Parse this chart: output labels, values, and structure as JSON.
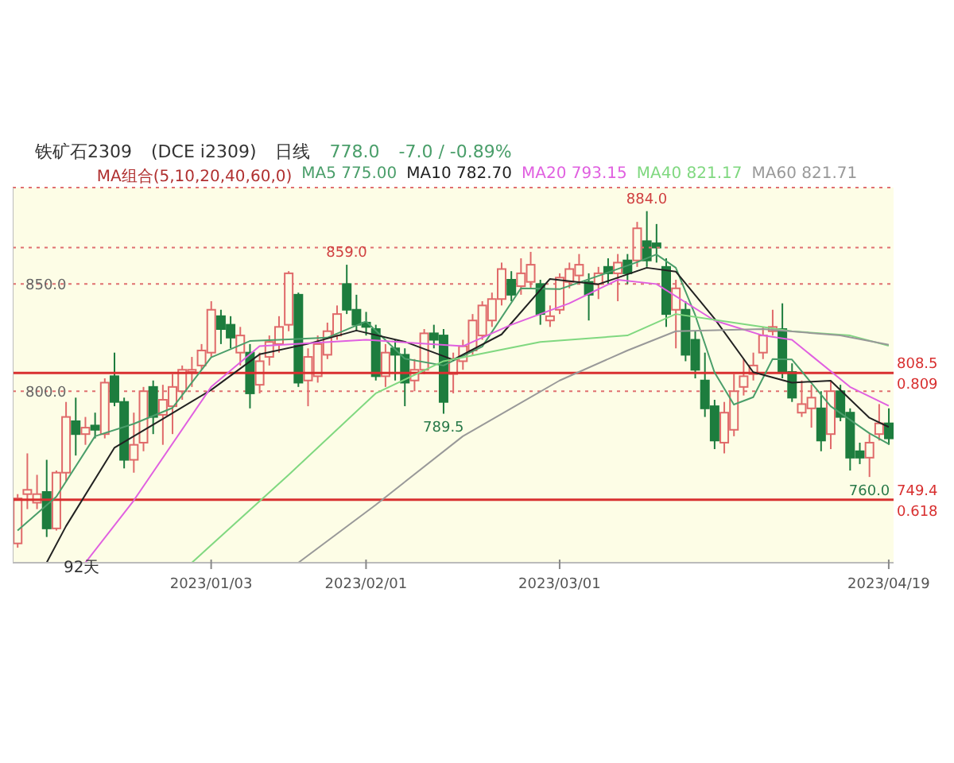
{
  "chart_data": {
    "type": "candlestick",
    "title": "铁矿石2309",
    "annotations": [
      "(DCE i2309)",
      "日线",
      "778.0",
      "-7.0 / -0.89%",
      "MA组合(5,10,20,40,60,0)",
      "92天",
      "0.809",
      "0.618",
      {
        "text": "884.0",
        "y": 884
      },
      {
        "text": "859.0",
        "y": 859
      },
      {
        "text": "789.5",
        "y": 789.5
      },
      {
        "text": "760.0",
        "y": 760
      }
    ],
    "categories": [
      null,
      null,
      null,
      null,
      null,
      null,
      null,
      null,
      null,
      null,
      null,
      null,
      null,
      null,
      null,
      null,
      null,
      null,
      null,
      null,
      "2023/01/03",
      null,
      null,
      null,
      null,
      null,
      null,
      null,
      null,
      null,
      null,
      null,
      null,
      null,
      null,
      null,
      "2023/02/01",
      null,
      null,
      null,
      null,
      null,
      null,
      null,
      null,
      null,
      null,
      null,
      null,
      null,
      null,
      null,
      null,
      null,
      null,
      null,
      "2023/03/01",
      null,
      null,
      null,
      null,
      null,
      null,
      null,
      null,
      null,
      null,
      null,
      null,
      null,
      null,
      null,
      null,
      null,
      null,
      null,
      null,
      null,
      null,
      null,
      null,
      null,
      null,
      null,
      null,
      null,
      null,
      null,
      null,
      null,
      "2023/04/19"
    ],
    "ohlc": [
      [
        729,
        752,
        727,
        750
      ],
      [
        752,
        771,
        745,
        754
      ],
      [
        748,
        761,
        745,
        752
      ],
      [
        753,
        768,
        732,
        736
      ],
      [
        736,
        763,
        735,
        762
      ],
      [
        762,
        795,
        758,
        788
      ],
      [
        786,
        797,
        770,
        780
      ],
      [
        780,
        788,
        775,
        783
      ],
      [
        784,
        790,
        778,
        782
      ],
      [
        780,
        806,
        778,
        804
      ],
      [
        807,
        818,
        793,
        795
      ],
      [
        795,
        797,
        764,
        768
      ],
      [
        768,
        790,
        762,
        775
      ],
      [
        776,
        802,
        772,
        800
      ],
      [
        802,
        805,
        780,
        788
      ],
      [
        789,
        803,
        775,
        796
      ],
      [
        793,
        808,
        780,
        802
      ],
      [
        800,
        812,
        796,
        810
      ],
      [
        809,
        816,
        802,
        810
      ],
      [
        812,
        822,
        810,
        819
      ],
      [
        818,
        842,
        816,
        838
      ],
      [
        835,
        838,
        822,
        829
      ],
      [
        831,
        835,
        820,
        825
      ],
      [
        818,
        830,
        812,
        826
      ],
      [
        818,
        822,
        792,
        799
      ],
      [
        803,
        818,
        799,
        814
      ],
      [
        816,
        826,
        812,
        823
      ],
      [
        822,
        835,
        818,
        830
      ],
      [
        831,
        856,
        828,
        855
      ],
      [
        845,
        846,
        802,
        804
      ],
      [
        805,
        820,
        793,
        816
      ],
      [
        807,
        826,
        804,
        822
      ],
      [
        817,
        832,
        815,
        828
      ],
      [
        826,
        840,
        824,
        836
      ],
      [
        850,
        859,
        836,
        838
      ],
      [
        838,
        845,
        828,
        831
      ],
      [
        832,
        837,
        826,
        830
      ],
      [
        829,
        831,
        805,
        807
      ],
      [
        807,
        822,
        802,
        818
      ],
      [
        820,
        824,
        805,
        817
      ],
      [
        817,
        820,
        793,
        804
      ],
      [
        805,
        815,
        800,
        810
      ],
      [
        810,
        829,
        808,
        827
      ],
      [
        827,
        831,
        820,
        824
      ],
      [
        826,
        829,
        789.5,
        795
      ],
      [
        808,
        818,
        799,
        815
      ],
      [
        814,
        824,
        810,
        821
      ],
      [
        819,
        836,
        817,
        833
      ],
      [
        826,
        842,
        824,
        840
      ],
      [
        833,
        846,
        830,
        843
      ],
      [
        843,
        860,
        840,
        857
      ],
      [
        852,
        856,
        842,
        845
      ],
      [
        849,
        862,
        845,
        855
      ],
      [
        851,
        865,
        848,
        859
      ],
      [
        850,
        852,
        831,
        836
      ],
      [
        833,
        840,
        830,
        835
      ],
      [
        838,
        855,
        836,
        853
      ],
      [
        851,
        860,
        848,
        857
      ],
      [
        854,
        864,
        850,
        859
      ],
      [
        851,
        855,
        833,
        845
      ],
      [
        850,
        858,
        843,
        855
      ],
      [
        858,
        862,
        850,
        855
      ],
      [
        855,
        864,
        842,
        860
      ],
      [
        861,
        864,
        850,
        855
      ],
      [
        861,
        879,
        858,
        876
      ],
      [
        870,
        884,
        858,
        861
      ],
      [
        869,
        878,
        860,
        867
      ],
      [
        858,
        862,
        830,
        836
      ],
      [
        838,
        852,
        820,
        848
      ],
      [
        838,
        842,
        814,
        817
      ],
      [
        824,
        828,
        806,
        810
      ],
      [
        805,
        818,
        788,
        792
      ],
      [
        793,
        796,
        773,
        777
      ],
      [
        776,
        795,
        771,
        790
      ],
      [
        782,
        808,
        779,
        800
      ],
      [
        802,
        815,
        798,
        807
      ],
      [
        808,
        818,
        805,
        812
      ],
      [
        818,
        830,
        815,
        826
      ],
      [
        828,
        838,
        826,
        830
      ],
      [
        829,
        841,
        806,
        809
      ],
      [
        809,
        813,
        795,
        797
      ],
      [
        790,
        805,
        788,
        794
      ],
      [
        792,
        803,
        783,
        797
      ],
      [
        792,
        800,
        772,
        777
      ],
      [
        780,
        805,
        773,
        800
      ],
      [
        800,
        803,
        786,
        788
      ],
      [
        790,
        792,
        763,
        769
      ],
      [
        772,
        776,
        766,
        769
      ],
      [
        769,
        780,
        760,
        776
      ],
      [
        780,
        794,
        777,
        785
      ],
      [
        785,
        792,
        775,
        778
      ]
    ],
    "series": [
      {
        "name": "MA5 775.00",
        "type": "line",
        "color": "#4a9e6a",
        "values": [
          735,
          null,
          null,
          null,
          750.8,
          null,
          null,
          null,
          779,
          null,
          null,
          null,
          784.8,
          null,
          null,
          null,
          792.2,
          null,
          null,
          null,
          815.8,
          null,
          null,
          null,
          823.4,
          null,
          null,
          null,
          824.2,
          null,
          null,
          null,
          825,
          null,
          null,
          null,
          832.6,
          null,
          null,
          null,
          815.2,
          null,
          null,
          null,
          812,
          null,
          null,
          null,
          820.8,
          null,
          null,
          null,
          848,
          null,
          null,
          null,
          847.6,
          null,
          null,
          null,
          853.8,
          null,
          null,
          null,
          860.2,
          null,
          863.8,
          null,
          857.6,
          null,
          835.6,
          null,
          808.8,
          null,
          793.8,
          null,
          797.2,
          null,
          815,
          null,
          814.8,
          null,
          null,
          null,
          793,
          null,
          null,
          null,
          780.4,
          null,
          775.4
        ]
      },
      {
        "name": "MA10 782.70",
        "type": "line",
        "color": "#222222",
        "values": [
          null,
          null,
          null,
          720,
          null,
          737,
          null,
          null,
          null,
          null,
          773.6,
          null,
          null,
          null,
          null,
          787.1,
          null,
          null,
          null,
          null,
          800.6,
          null,
          null,
          null,
          null,
          817.2,
          null,
          null,
          null,
          null,
          822.1,
          null,
          null,
          null,
          null,
          828.3,
          null,
          null,
          null,
          null,
          823.1,
          null,
          null,
          null,
          null,
          814.7,
          null,
          null,
          null,
          null,
          826.5,
          null,
          null,
          null,
          null,
          852.4,
          null,
          null,
          null,
          null,
          849.9,
          null,
          null,
          null,
          null,
          857.6,
          null,
          null,
          855.8,
          null,
          null,
          null,
          833.9,
          null,
          null,
          null,
          808.9,
          null,
          null,
          null,
          804,
          null,
          null,
          null,
          804.9,
          null,
          null,
          null,
          787.6,
          null,
          783.3
        ]
      },
      {
        "name": "MA20 793.15",
        "type": "line",
        "color": "#e060e0",
        "values": [
          null,
          null,
          null,
          null,
          null,
          null,
          null,
          720,
          null,
          null,
          null,
          null,
          749,
          null,
          null,
          null,
          null,
          null,
          null,
          null,
          802,
          null,
          null,
          null,
          null,
          821,
          null,
          null,
          null,
          null,
          null,
          null,
          null,
          null,
          null,
          null,
          824,
          null,
          null,
          null,
          null,
          null,
          null,
          null,
          null,
          null,
          821,
          null,
          null,
          null,
          null,
          831,
          null,
          null,
          null,
          null,
          null,
          841,
          null,
          null,
          null,
          null,
          852,
          null,
          null,
          null,
          850,
          null,
          null,
          null,
          null,
          null,
          833,
          null,
          null,
          null,
          null,
          826,
          null,
          null,
          824,
          null,
          null,
          null,
          null,
          null,
          802,
          null,
          null,
          null,
          793.2
        ]
      },
      {
        "name": "MA40 821.17",
        "type": "line",
        "color": "#80d880",
        "values": [
          null,
          null,
          null,
          null,
          null,
          null,
          null,
          null,
          null,
          null,
          null,
          null,
          null,
          null,
          null,
          null,
          null,
          null,
          720,
          null,
          null,
          null,
          null,
          null,
          null,
          null,
          null,
          null,
          761,
          null,
          null,
          null,
          null,
          null,
          null,
          null,
          null,
          799,
          null,
          null,
          null,
          null,
          null,
          null,
          814,
          null,
          null,
          null,
          null,
          null,
          null,
          null,
          null,
          null,
          823,
          null,
          null,
          null,
          null,
          null,
          null,
          null,
          null,
          826,
          null,
          null,
          null,
          null,
          836,
          null,
          null,
          null,
          null,
          null,
          832,
          null,
          null,
          null,
          null,
          null,
          828,
          null,
          null,
          null,
          null,
          null,
          826,
          null,
          null,
          null,
          821.2
        ]
      },
      {
        "name": "MA60 821.71",
        "type": "line",
        "color": "#999999",
        "values": [
          null,
          null,
          null,
          null,
          null,
          null,
          null,
          null,
          null,
          null,
          null,
          null,
          null,
          null,
          null,
          null,
          null,
          null,
          null,
          null,
          null,
          null,
          null,
          null,
          null,
          null,
          null,
          null,
          null,
          720,
          null,
          null,
          null,
          null,
          null,
          null,
          null,
          747,
          null,
          null,
          null,
          null,
          null,
          null,
          null,
          null,
          779,
          null,
          null,
          null,
          null,
          null,
          null,
          null,
          null,
          null,
          805,
          null,
          null,
          null,
          null,
          null,
          null,
          819,
          null,
          null,
          null,
          null,
          828,
          null,
          null,
          null,
          null,
          null,
          null,
          null,
          null,
          829,
          null,
          null,
          null,
          null,
          null,
          null,
          null,
          826,
          null,
          null,
          null,
          null,
          821.7
        ]
      }
    ],
    "ylim": [
      720,
      895
    ],
    "yticks": [
      {
        "value": 850,
        "label": "850.0"
      },
      {
        "value": 800,
        "label": "800.0"
      }
    ],
    "ref_lines": [
      {
        "axis": "y",
        "value": 808.5,
        "label": "808.5",
        "color": "#d83030",
        "line_style": "solid"
      },
      {
        "axis": "y",
        "value": 749.4,
        "label": "749.4",
        "color": "#d83030",
        "line_style": "solid"
      },
      {
        "axis": "y",
        "value": 867,
        "label": null,
        "color": "#e07070",
        "line_style": "dotted"
      }
    ],
    "grid": "y",
    "legend": "top",
    "marker": "none"
  }
}
